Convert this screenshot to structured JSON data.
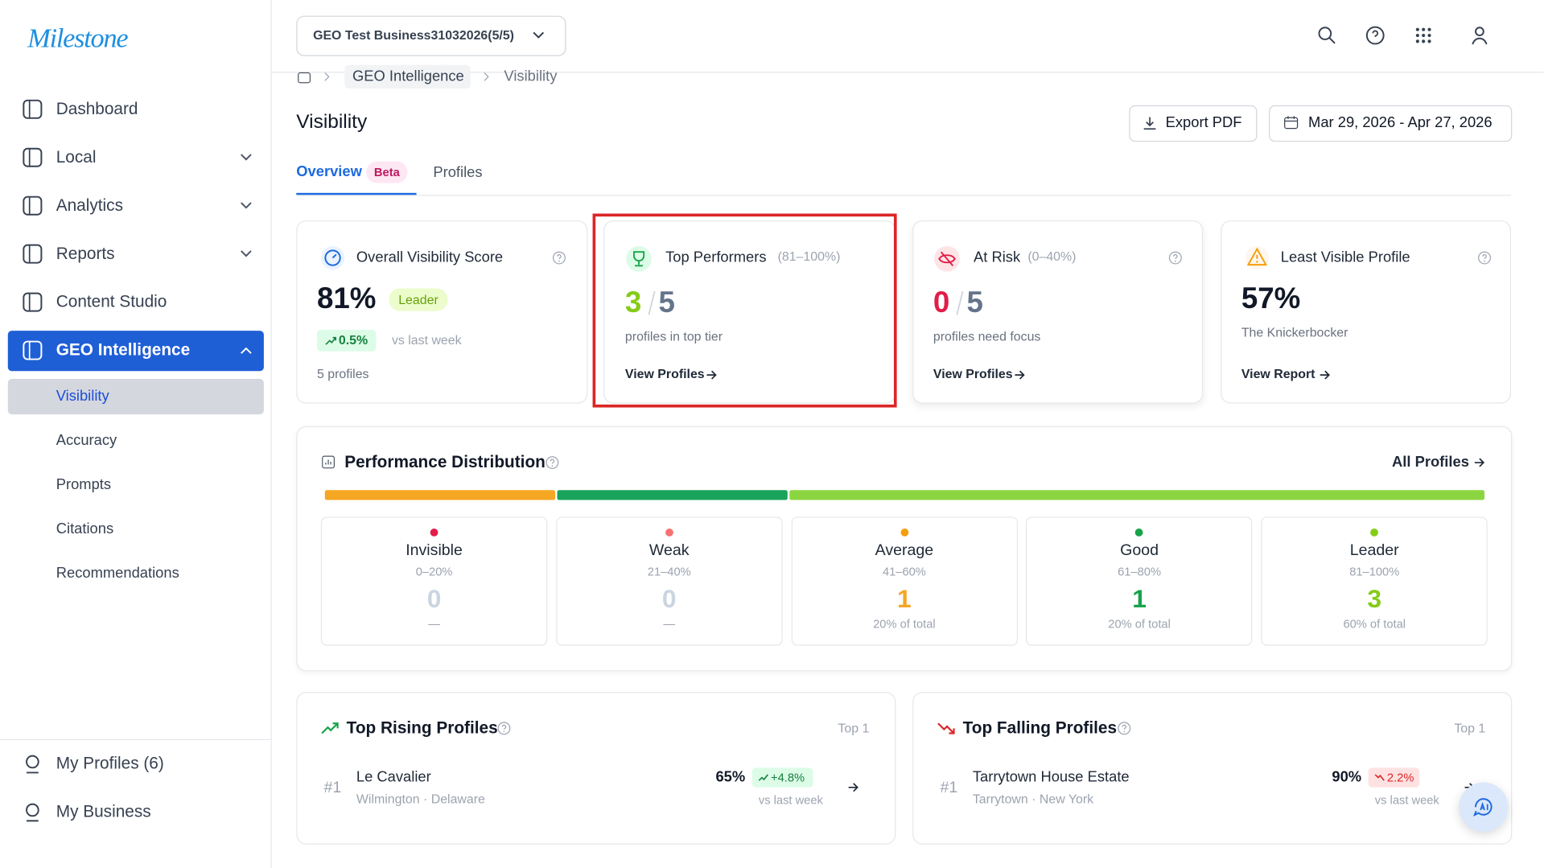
{
  "logo": "Milestone",
  "sidebar": {
    "items": [
      "Dashboard",
      "Local",
      "Analytics",
      "Reports",
      "Content Studio",
      "GEO Intelligence"
    ],
    "subitems": [
      "Visibility",
      "Accuracy",
      "Prompts",
      "Citations",
      "Recommendations"
    ],
    "footer": [
      "My Profiles (6)",
      "My Business"
    ]
  },
  "header": {
    "business": "GEO Test Business31032026(5/5)"
  },
  "breadcrumb": [
    "GEO Intelligence",
    "Visibility"
  ],
  "page": {
    "title": "Visibility",
    "export": "Export PDF",
    "date_range": "Mar 29, 2026 - Apr 27, 2026",
    "tabs": [
      {
        "label": "Overview",
        "badge": "Beta"
      },
      {
        "label": "Profiles"
      }
    ]
  },
  "cards": [
    {
      "title": "Overall Visibility Score",
      "value": "81%",
      "badge": "Leader",
      "change": "0.5%",
      "change_note": "vs last week",
      "footer": "5 profiles"
    },
    {
      "title": "Top Performers",
      "range": "(81–100%)",
      "value": "3",
      "total": "5",
      "note": "profiles in top tier",
      "link": "View Profiles"
    },
    {
      "title": "At Risk",
      "range": "(0–40%)",
      "value": "0",
      "total": "5",
      "note": "profiles need focus",
      "link": "View Profiles"
    },
    {
      "title": "Least Visible Profile",
      "value": "57%",
      "note": "The Knickerbocker",
      "link": "View Report"
    }
  ],
  "distribution": {
    "title": "Performance Distribution",
    "link": "All Profiles",
    "tiers": [
      {
        "name": "Invisible",
        "range": "0–20%",
        "count": 0,
        "share": "—",
        "dot": "#e11d48",
        "color": "#cbd5e1",
        "bar": "#e11d48"
      },
      {
        "name": "Weak",
        "range": "21–40%",
        "count": 0,
        "share": "—",
        "dot": "#f87171",
        "color": "#cbd5e1",
        "bar": "#f87171"
      },
      {
        "name": "Average",
        "range": "41–60%",
        "count": 1,
        "share": "20% of total",
        "dot": "#f59e0b",
        "color": "#f5a623",
        "bar": "#f5a623"
      },
      {
        "name": "Good",
        "range": "61–80%",
        "count": 1,
        "share": "20% of total",
        "dot": "#16a34a",
        "color": "#16a34a",
        "bar": "#1aa35b"
      },
      {
        "name": "Leader",
        "range": "81–100%",
        "count": 3,
        "share": "60% of total",
        "dot": "#84cc16",
        "color": "#84cc16",
        "bar": "#8bd640"
      }
    ]
  },
  "rising": {
    "title": "Top Rising Profiles",
    "top": "Top 1",
    "items": [
      {
        "rank": "#1",
        "name": "Le Cavalier",
        "location": "Wilmington · Delaware",
        "score": "65%",
        "change": "+4.8%",
        "note": "vs last week"
      }
    ]
  },
  "falling": {
    "title": "Top Falling Profiles",
    "top": "Top 1",
    "items": [
      {
        "rank": "#1",
        "name": "Tarrytown House Estate",
        "location": "Tarrytown · New York",
        "score": "90%",
        "change": "2.2%",
        "note": "vs last week"
      }
    ]
  }
}
